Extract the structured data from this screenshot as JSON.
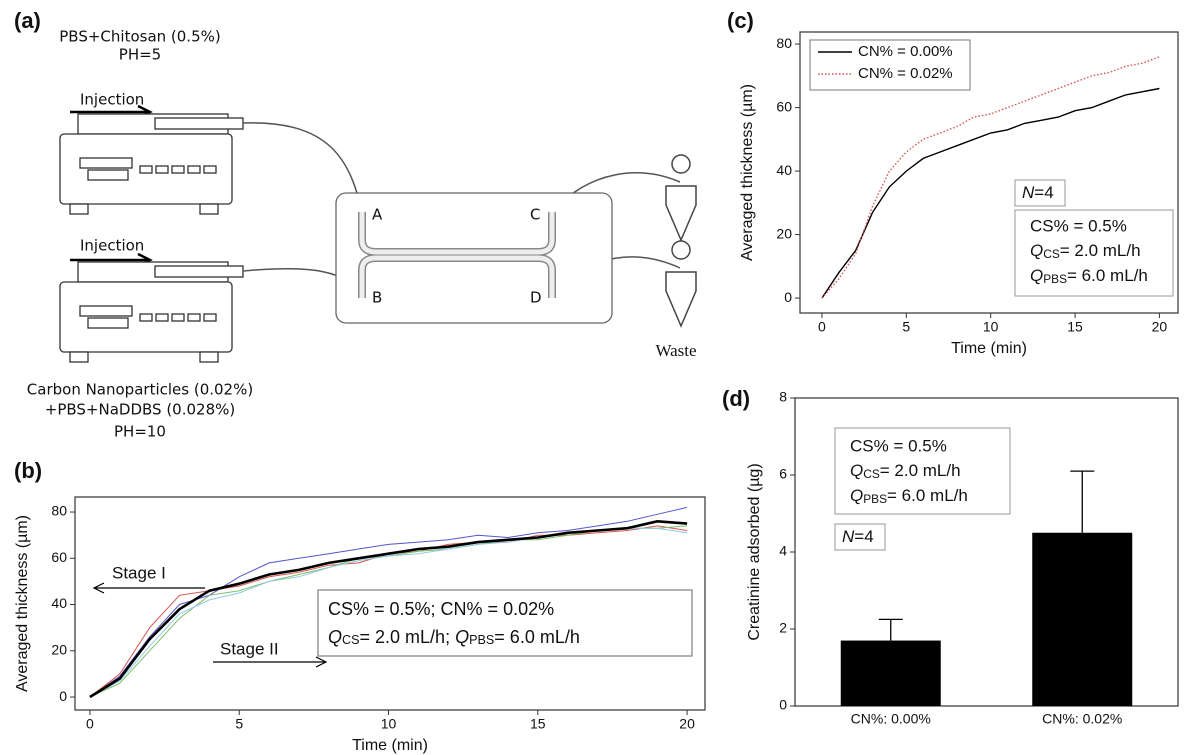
{
  "diagram": {
    "label": "(a)",
    "top_solution": [
      "PBS+Chitosan (0.5%)",
      "PH=5"
    ],
    "injection_top": "Injection",
    "injection_bottom": "Injection",
    "ports": [
      "A",
      "B",
      "C",
      "D"
    ],
    "waste": "Waste",
    "bottom_solution": [
      "Carbon Nanoparticles (0.02%)",
      "+PBS+NaDDBS (0.028%)",
      "PH=10"
    ]
  },
  "chart_data": [
    {
      "type": "line",
      "label": "(b)",
      "xlabel": "Time (min)",
      "ylabel": "Averaged thickness (µm)",
      "x": [
        0,
        1,
        2,
        3,
        4,
        5,
        6,
        7,
        8,
        9,
        10,
        11,
        12,
        13,
        14,
        15,
        16,
        17,
        18,
        19,
        20
      ],
      "series": [
        {
          "color": "#5555cc",
          "width": 1,
          "values": [
            0,
            9,
            26,
            40,
            44,
            52,
            58,
            60,
            62,
            64,
            66,
            67,
            68,
            70,
            69,
            71,
            72,
            74,
            76,
            79,
            82
          ]
        },
        {
          "color": "#d9534f",
          "width": 1,
          "values": [
            0,
            10,
            30,
            44,
            46,
            48,
            52,
            54,
            57,
            58,
            62,
            63,
            66,
            67,
            67,
            70,
            70,
            71,
            72,
            74,
            72
          ]
        },
        {
          "color": "#7cbf6a",
          "width": 1,
          "values": [
            0,
            6,
            20,
            34,
            44,
            46,
            50,
            53,
            56,
            60,
            61,
            63,
            64,
            66,
            68,
            68,
            70,
            72,
            73,
            73,
            74
          ]
        },
        {
          "color": "#8ecae6",
          "width": 1,
          "values": [
            0,
            7,
            22,
            36,
            42,
            45,
            50,
            52,
            56,
            59,
            61,
            62,
            64,
            66,
            67,
            69,
            71,
            72,
            73,
            73,
            71
          ]
        },
        {
          "color": "#000000",
          "width": 2.6,
          "values": [
            0,
            8,
            25,
            38,
            46,
            49,
            53,
            55,
            58,
            60,
            62,
            64,
            65,
            67,
            68,
            69,
            71,
            72,
            73,
            76,
            75
          ]
        }
      ],
      "xlim": [
        -0.5,
        20.6
      ],
      "ylim": [
        -5.6,
        86.5
      ],
      "xticks": [
        0,
        5,
        10,
        15,
        20
      ],
      "yticks": [
        0,
        20,
        40,
        60,
        80
      ],
      "stage1": "Stage I",
      "stage2": "Stage II",
      "box": [
        "CS% = 0.5%; CN% = 0.02%",
        [
          "Q",
          "CS",
          "= 2.0 mL/h; ",
          "Q",
          "PBS",
          "= 6.0 mL/h"
        ]
      ]
    },
    {
      "type": "line",
      "label": "(c)",
      "xlabel": "Time (min)",
      "ylabel": "Averaged thickness (µm)",
      "x": [
        0,
        1,
        2,
        3,
        4,
        5,
        6,
        7,
        8,
        9,
        10,
        11,
        12,
        13,
        14,
        15,
        16,
        17,
        18,
        19,
        20
      ],
      "series": [
        {
          "name": "CN% = 0.00%",
          "color": "#000000",
          "width": 1.4,
          "line_style": "solid",
          "values": [
            0,
            8,
            15,
            27,
            35,
            40,
            44,
            46,
            48,
            50,
            52,
            53,
            55,
            56,
            57,
            59,
            60,
            62,
            64,
            65,
            66
          ]
        },
        {
          "name": "CN% = 0.02%",
          "color": "#d9534f",
          "width": 1.4,
          "line_style": "dotted",
          "values": [
            0,
            6,
            14,
            29,
            40,
            46,
            50,
            52,
            54,
            57,
            58,
            60,
            62,
            64,
            66,
            68,
            70,
            71,
            73,
            74,
            76
          ]
        }
      ],
      "xlim": [
        -1.3,
        21.1
      ],
      "ylim": [
        -4.7,
        83.8
      ],
      "xticks": [
        0,
        5,
        10,
        15,
        20
      ],
      "yticks": [
        0,
        20,
        40,
        60,
        80
      ],
      "n_label": [
        "N",
        "=4"
      ],
      "box": [
        "CS% = 0.5%",
        [
          "Q",
          "CS",
          "= 2.0 mL/h"
        ],
        [
          "Q",
          "PBS",
          "= 6.0 mL/h"
        ]
      ]
    },
    {
      "type": "bar",
      "label": "(d)",
      "ylabel": "Creatinine adsorbed (µg)",
      "categories": [
        "CN%: 0.00%",
        "CN%: 0.02%"
      ],
      "values": [
        1.7,
        4.5
      ],
      "errors": [
        0.55,
        1.6
      ],
      "color": "#000000",
      "ylim": [
        0,
        8
      ],
      "yticks": [
        0,
        2,
        4,
        6,
        8
      ],
      "n_label": [
        "N",
        "=4"
      ],
      "box": [
        "CS% = 0.5%",
        [
          "Q",
          "CS",
          "= 2.0 mL/h"
        ],
        [
          "Q",
          "PBS",
          "= 6.0 mL/h"
        ]
      ]
    }
  ]
}
